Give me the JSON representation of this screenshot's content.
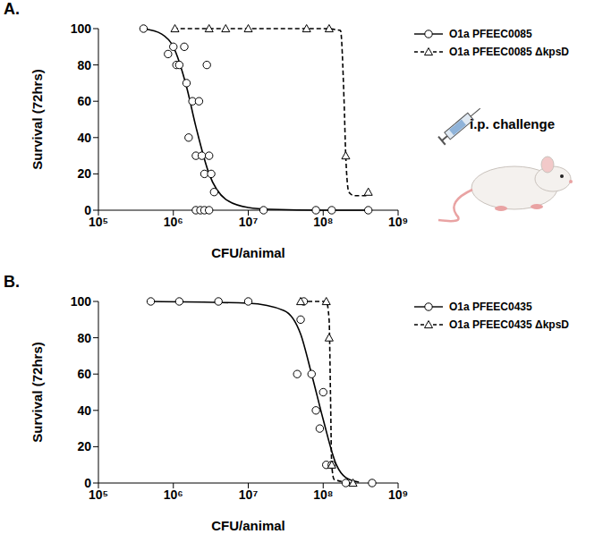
{
  "chart_data": [
    {
      "type": "scatter",
      "title": "A.",
      "annotation": "i.p. challenge",
      "x_label": "CFU/animal",
      "y_label": "Survival (72hrs)",
      "log": "x",
      "grid": false,
      "legend": "right",
      "xlim": [
        100000,
        1000000000
      ],
      "xticks": [
        {
          "value": 100000,
          "label": "10⁵"
        },
        {
          "value": 1000000,
          "label": "10⁶"
        },
        {
          "value": 10000000,
          "label": "10⁷"
        },
        {
          "value": 100000000,
          "label": "10⁸"
        },
        {
          "value": 1000000000,
          "label": "10⁹"
        }
      ],
      "ylim": [
        0,
        100
      ],
      "yticks": [
        0,
        20,
        40,
        60,
        80,
        100
      ],
      "series": [
        {
          "name": "O1a PFEEC0085",
          "color": "#000000",
          "marker": "circle",
          "line_style": "solid",
          "x": [
            400000,
            850000,
            1000000,
            1100000,
            1200000,
            1400000,
            1500000,
            1600000,
            1800000,
            2000000,
            2200000,
            2400000,
            2600000,
            2800000,
            3000000,
            3200000,
            3500000,
            2000000,
            2300000,
            2600000,
            3000000,
            16000000,
            80000000,
            130000000,
            400000000
          ],
          "values": [
            100,
            86,
            90,
            80,
            80,
            90,
            70,
            40,
            60,
            30,
            60,
            30,
            20,
            80,
            30,
            20,
            10,
            0,
            0,
            0,
            0,
            0,
            0,
            0,
            0
          ],
          "fit": {
            "x": [
              400000,
              700000,
              1000000,
              1500000,
              2000000,
              3000000,
              5000000,
              10000000,
              20000000,
              100000000,
              400000000
            ],
            "values": [
              100,
              97,
              90,
              68,
              46,
              20,
              6,
              1.5,
              0.5,
              0,
              0
            ]
          }
        },
        {
          "name": "O1a PFEEC0085 ΔkpsD",
          "color": "#000000",
          "marker": "triangle",
          "line_style": "dashed",
          "x": [
            1050000,
            3000000,
            5000000,
            10000000,
            60000000,
            120000000,
            200000000,
            400000000
          ],
          "values": [
            100,
            100,
            100,
            100,
            100,
            100,
            30,
            10
          ],
          "fit": {
            "x": [
              1000000,
              100000000,
              170000000,
              190000000,
              200000000,
              220000000,
              260000000,
              400000000
            ],
            "values": [
              100,
              100,
              99,
              60,
              30,
              10,
              8,
              8
            ]
          }
        }
      ]
    },
    {
      "type": "scatter",
      "title": "B.",
      "x_label": "CFU/animal",
      "y_label": "Survival (72hrs)",
      "log": "x",
      "grid": false,
      "legend": "right",
      "xlim": [
        100000,
        1000000000
      ],
      "xticks": [
        {
          "value": 100000,
          "label": "10⁵"
        },
        {
          "value": 1000000,
          "label": "10⁶"
        },
        {
          "value": 10000000,
          "label": "10⁷"
        },
        {
          "value": 100000000,
          "label": "10⁸"
        },
        {
          "value": 1000000000,
          "label": "10⁹"
        }
      ],
      "ylim": [
        0,
        100
      ],
      "yticks": [
        0,
        20,
        40,
        60,
        80,
        100
      ],
      "series": [
        {
          "name": "O1a PFEEC0435",
          "color": "#000000",
          "marker": "circle",
          "line_style": "solid",
          "x": [
            500000,
            1200000,
            4000000,
            10000000,
            45000000,
            50000000,
            55000000,
            70000000,
            80000000,
            90000000,
            100000000,
            110000000,
            130000000,
            200000000,
            450000000
          ],
          "values": [
            100,
            100,
            100,
            100,
            60,
            90,
            100,
            60,
            40,
            30,
            50,
            10,
            10,
            0,
            0
          ],
          "fit": {
            "x": [
              500000,
              10000000,
              30000000,
              50000000,
              70000000,
              100000000,
              150000000,
              200000000,
              300000000
            ],
            "values": [
              100,
              99,
              95,
              82,
              60,
              35,
              10,
              3,
              0.5
            ]
          }
        },
        {
          "name": "O1a PFEEC0435 ΔkpsD",
          "color": "#000000",
          "marker": "triangle",
          "line_style": "dashed",
          "x": [
            50000000,
            110000000,
            120000000,
            130000000,
            250000000
          ],
          "values": [
            100,
            100,
            80,
            10,
            0
          ],
          "fit": {
            "x": [
              50000000,
              110000000,
              120000000,
              125000000,
              130000000,
              140000000,
              250000000
            ],
            "values": [
              100,
              100,
              90,
              50,
              10,
              2,
              0
            ]
          }
        }
      ]
    }
  ]
}
